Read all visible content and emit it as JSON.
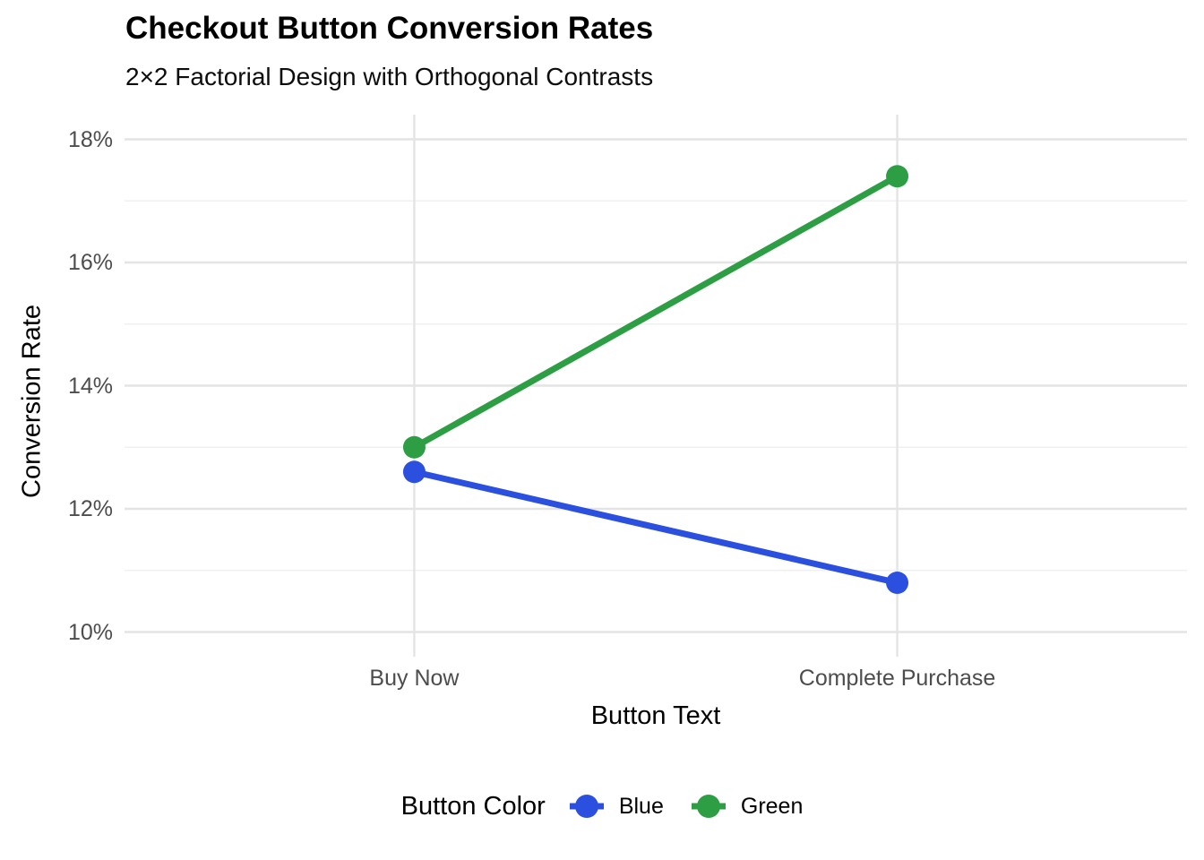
{
  "title": "Checkout Button Conversion Rates",
  "subtitle": "2×2 Factorial Design with Orthogonal Contrasts",
  "chart_data": {
    "type": "line",
    "title": "Checkout Button Conversion Rates",
    "subtitle": "2×2 Factorial Design with Orthogonal Contrasts",
    "categories": [
      "Buy Now",
      "Complete Purchase"
    ],
    "series": [
      {
        "name": "Blue",
        "color": "#2b50e0",
        "values": [
          12.6,
          10.8
        ]
      },
      {
        "name": "Green",
        "color": "#2d9e44",
        "values": [
          13.0,
          17.4
        ]
      }
    ],
    "xlabel": "Button Text",
    "ylabel": "Conversion Rate",
    "unit": "%",
    "y_ticks": [
      10,
      12,
      14,
      16,
      18
    ],
    "y_tick_labels": [
      "10%",
      "12%",
      "14%",
      "16%",
      "18%"
    ],
    "y_minor_ticks": [
      11,
      13,
      15,
      17
    ],
    "ylim": [
      9.6,
      18.4
    ],
    "grid": true,
    "legend_title": "Button Color",
    "legend_position": "bottom",
    "colors": {
      "major_gridline": "#e4e4e4",
      "minor_gridline": "#f0f0f0",
      "tick_label": "#4d4d4d",
      "background": "#ffffff"
    }
  }
}
